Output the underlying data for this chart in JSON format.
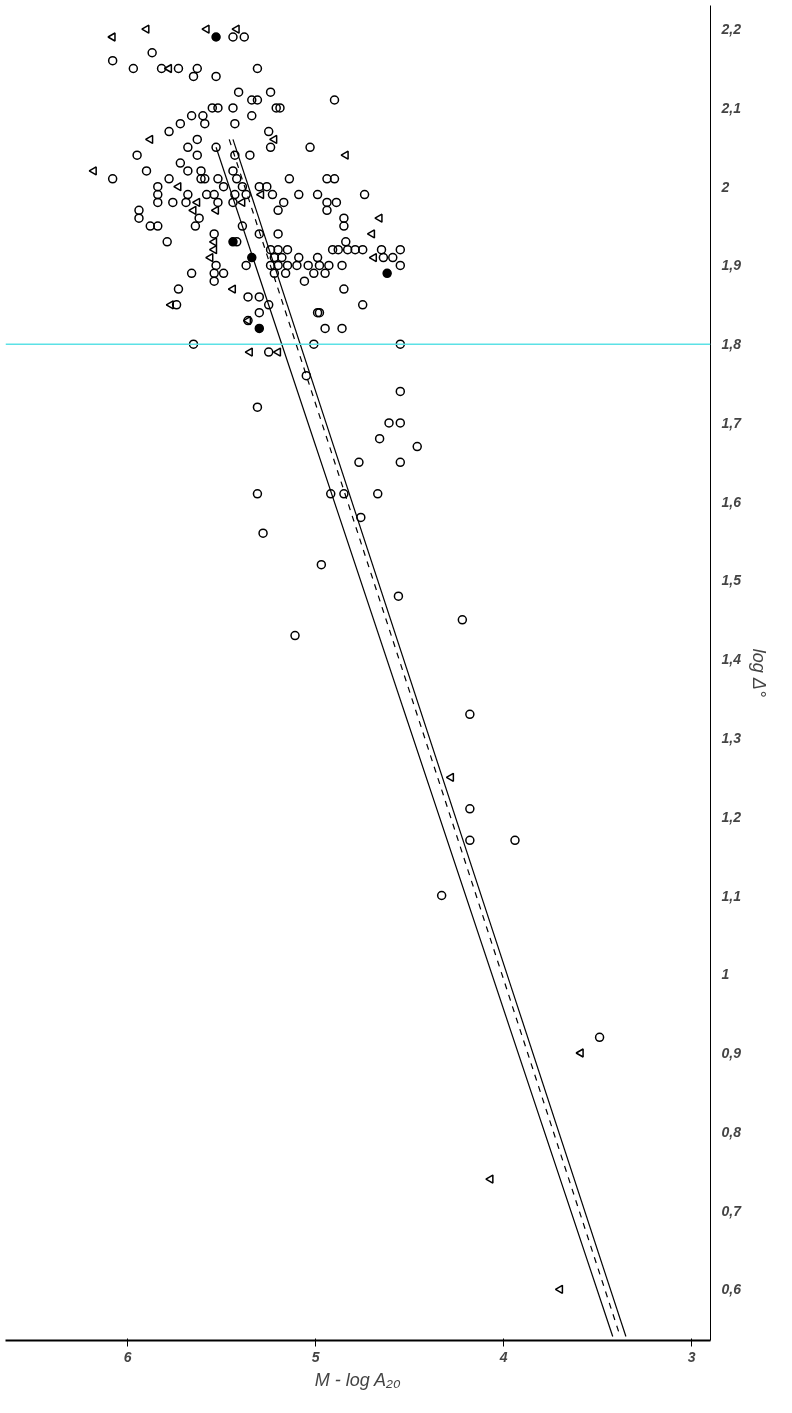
{
  "chart_data": {
    "type": "scatter",
    "xlabel": "M - log A₂₀",
    "ylabel": "log Δ°",
    "xlim": [
      6.65,
      2.9
    ],
    "ylim": [
      0.535,
      2.23
    ],
    "xticks": [
      6,
      5,
      4,
      3
    ],
    "yticks": [
      {
        "value": 0.6,
        "label": "0,6"
      },
      {
        "value": 0.7,
        "label": "0,7"
      },
      {
        "value": 0.8,
        "label": "0,8"
      },
      {
        "value": 0.9,
        "label": "0,9"
      },
      1,
      {
        "value": 1.1,
        "label": "1,1"
      },
      {
        "value": 1.2,
        "label": "1,2"
      },
      {
        "value": 1.3,
        "label": "1,3"
      },
      {
        "value": 1.4,
        "label": "1,4"
      },
      {
        "value": 1.5,
        "label": "1,5"
      },
      {
        "value": 1.6,
        "label": "1,6"
      },
      {
        "value": 1.7,
        "label": "1,7"
      },
      {
        "value": 1.8,
        "label": "1,8"
      },
      {
        "value": 1.9,
        "label": "1,9"
      },
      2,
      {
        "value": 2.1,
        "label": "2,1"
      },
      {
        "value": 2.2,
        "label": "2,2"
      }
    ],
    "grid": false,
    "ref_lines": [
      {
        "axis": "y",
        "value": 1.8,
        "color": "#5ce1e6"
      }
    ],
    "series": [
      {
        "marker": "circle",
        "color": "#000000",
        "x": [
          5.44,
          5.38,
          5.87,
          6.08,
          5.97,
          5.82,
          5.73,
          5.63,
          5.65,
          5.53,
          5.31,
          5.41,
          5.24,
          5.34,
          5.31,
          4.9,
          5.21,
          5.19,
          5.55,
          5.52,
          5.44,
          5.66,
          5.6,
          5.72,
          5.59,
          5.43,
          5.34,
          5.78,
          5.25,
          5.63,
          5.68,
          5.53,
          5.63,
          5.43,
          5.35,
          5.24,
          5.03,
          5.95,
          5.72,
          5.68,
          5.61,
          5.9,
          5.44,
          6.08,
          5.61,
          5.52,
          5.42,
          4.94,
          5.26,
          5.78,
          5.59,
          5.14,
          4.9,
          5.84,
          5.84,
          5.84,
          5.76,
          5.68,
          5.69,
          5.58,
          5.54,
          5.49,
          5.52,
          5.43,
          5.39,
          5.37,
          5.44,
          5.3,
          5.23,
          5.17,
          5.2,
          5.09,
          4.99,
          4.94,
          4.94,
          4.89,
          4.74,
          5.94,
          5.94,
          5.88,
          5.84,
          5.79,
          5.62,
          5.64,
          5.54,
          5.39,
          5.3,
          5.2,
          4.85,
          4.85,
          5.42,
          4.84,
          4.91,
          4.88,
          4.83,
          4.79,
          4.75,
          4.65,
          4.64,
          4.59,
          4.55,
          4.55,
          5.24,
          5.2,
          5.15,
          5.22,
          5.18,
          5.24,
          5.2,
          5.15,
          5.1,
          5.04,
          4.98,
          4.93,
          4.86,
          5.09,
          4.99,
          5.22,
          5.16,
          5.01,
          4.95,
          5.06,
          5.66,
          5.54,
          5.49,
          5.54,
          5.53,
          5.37,
          5.73,
          5.74,
          5.36,
          5.3,
          5.25,
          5.3,
          4.99,
          4.98,
          4.85,
          4.75,
          5.36,
          4.95,
          4.86,
          5.65,
          5.01,
          4.55,
          5.25,
          5.05,
          4.55,
          5.31,
          4.61,
          4.55,
          4.66,
          4.46,
          4.77,
          4.55,
          5.31,
          4.92,
          4.85,
          4.67,
          4.76,
          5.28,
          4.97,
          4.56,
          5.11,
          4.22,
          4.18,
          4.18,
          4.18,
          3.94,
          4.33,
          3.49
        ],
        "values": [
          2.19,
          2.19,
          2.17,
          2.16,
          2.15,
          2.15,
          2.15,
          2.15,
          2.14,
          2.14,
          2.15,
          2.12,
          2.12,
          2.11,
          2.11,
          2.11,
          2.1,
          2.1,
          2.1,
          2.1,
          2.1,
          2.09,
          2.09,
          2.08,
          2.08,
          2.08,
          2.09,
          2.07,
          2.07,
          2.06,
          2.05,
          2.05,
          2.04,
          2.04,
          2.04,
          2.05,
          2.05,
          2.04,
          2.03,
          2.02,
          2.02,
          2.02,
          2.02,
          2.01,
          2.01,
          2.01,
          2.01,
          2.01,
          2.0,
          2.01,
          2.01,
          2.01,
          2.01,
          2.0,
          1.99,
          1.98,
          1.98,
          1.99,
          1.98,
          1.99,
          1.99,
          2.0,
          1.98,
          1.99,
          2.0,
          1.99,
          1.98,
          2.0,
          1.99,
          1.98,
          1.97,
          1.99,
          1.99,
          1.98,
          1.97,
          1.98,
          1.99,
          1.97,
          1.96,
          1.95,
          1.95,
          1.93,
          1.96,
          1.95,
          1.94,
          1.95,
          1.94,
          1.94,
          1.96,
          1.95,
          1.93,
          1.93,
          1.92,
          1.92,
          1.92,
          1.92,
          1.92,
          1.92,
          1.91,
          1.91,
          1.92,
          1.9,
          1.92,
          1.92,
          1.92,
          1.91,
          1.91,
          1.9,
          1.9,
          1.9,
          1.9,
          1.9,
          1.9,
          1.9,
          1.9,
          1.91,
          1.91,
          1.89,
          1.89,
          1.89,
          1.89,
          1.88,
          1.89,
          1.89,
          1.89,
          1.88,
          1.9,
          1.9,
          1.87,
          1.85,
          1.86,
          1.86,
          1.85,
          1.84,
          1.84,
          1.84,
          1.87,
          1.85,
          1.83,
          1.82,
          1.82,
          1.8,
          1.8,
          1.8,
          1.79,
          1.76,
          1.74,
          1.72,
          1.7,
          1.7,
          1.68,
          1.67,
          1.65,
          1.65,
          1.61,
          1.61,
          1.61,
          1.61,
          1.58,
          1.56,
          1.52,
          1.48,
          1.43,
          1.45,
          1.33,
          1.21,
          1.17,
          1.17,
          1.1,
          0.92
        ]
      },
      {
        "marker": "triangle",
        "color": "#000000",
        "x": [
          5.9,
          5.58,
          5.42,
          6.08,
          5.78,
          5.88,
          5.22,
          4.84,
          6.18,
          5.73,
          5.63,
          5.39,
          5.29,
          5.65,
          5.53,
          4.66,
          5.54,
          5.54,
          5.56,
          4.7,
          4.69,
          5.44,
          5.77,
          5.36,
          5.35,
          5.2,
          4.28,
          3.59,
          4.07,
          3.7
        ],
        "values": [
          2.2,
          2.2,
          2.2,
          2.19,
          2.15,
          2.06,
          2.06,
          2.04,
          2.02,
          2.0,
          1.98,
          1.98,
          1.99,
          1.97,
          1.97,
          1.96,
          1.93,
          1.92,
          1.91,
          1.94,
          1.91,
          1.87,
          1.85,
          1.83,
          1.79,
          1.79,
          1.25,
          0.9,
          0.74,
          0.6
        ]
      },
      {
        "marker": "dot",
        "color": "#000000",
        "x": [
          5.53,
          5.44,
          5.34,
          4.62,
          5.3
        ],
        "values": [
          2.19,
          1.93,
          1.91,
          1.89,
          1.82
        ]
      },
      {
        "type": "line",
        "line_style": "solid",
        "color": "#000000",
        "x": [
          5.53,
          3.42
        ],
        "values": [
          2.05,
          0.54
        ]
      },
      {
        "type": "line",
        "line_style": "dashed",
        "color": "#000000",
        "x": [
          5.46,
          3.38
        ],
        "values": [
          2.06,
          0.54
        ]
      },
      {
        "type": "line",
        "line_style": "solid",
        "color": "#000000",
        "x": [
          5.44,
          3.35
        ],
        "values": [
          2.06,
          0.54
        ]
      }
    ]
  }
}
